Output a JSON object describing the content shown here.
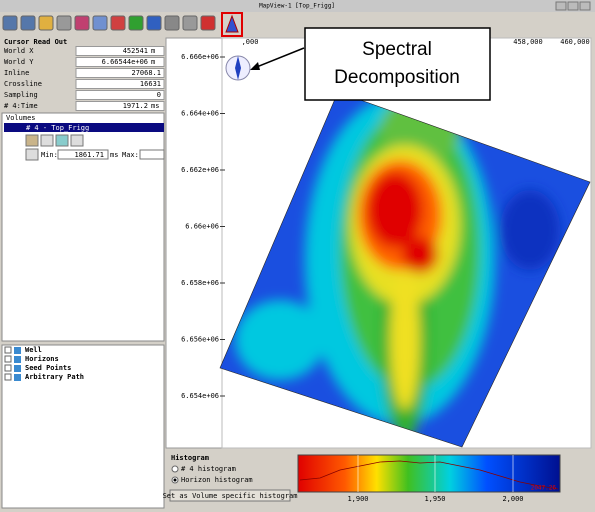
{
  "window": {
    "title": "MapView-1 [Top_Frigg]"
  },
  "cursor_readout": {
    "title": "Cursor Read Out",
    "rows": [
      {
        "label": "World X",
        "value": "452541",
        "unit": "m"
      },
      {
        "label": "World Y",
        "value": "6.66544e+06",
        "unit": "m"
      },
      {
        "label": "Inline",
        "value": "27068.1"
      },
      {
        "label": "Crossline",
        "value": "16631"
      },
      {
        "label": "Sampling",
        "value": "0"
      },
      {
        "label": "# 4:Time",
        "value": "1971.2",
        "unit": "ms"
      }
    ]
  },
  "volumes": {
    "title": "Volumes",
    "item": "# 4 - Top_Frigg",
    "min_label": "Min:",
    "min_value": "1861.71",
    "min_unit": "ms",
    "max_label": "Max:"
  },
  "tree": [
    "Well",
    "Horizons",
    "Seed Points",
    "Arbitrary Path"
  ],
  "map": {
    "x_ticks": [
      ",000",
      "458,000",
      "460,000"
    ],
    "y_ticks": [
      "6.666e+06",
      "6.664e+06",
      "6.662e+06",
      "6.66e+06",
      "6.658e+06",
      "6.656e+06",
      "6.654e+06"
    ]
  },
  "callout": {
    "lines": [
      "Spectral",
      "Decomposition"
    ]
  },
  "histogram": {
    "title": "Histogram",
    "options": [
      "# 4 histogram",
      "Horizon histogram"
    ],
    "button": "Set as Volume specific histogram",
    "ticks": [
      "1,900",
      "1,950",
      "2,000"
    ],
    "max_label": "2047.26"
  }
}
